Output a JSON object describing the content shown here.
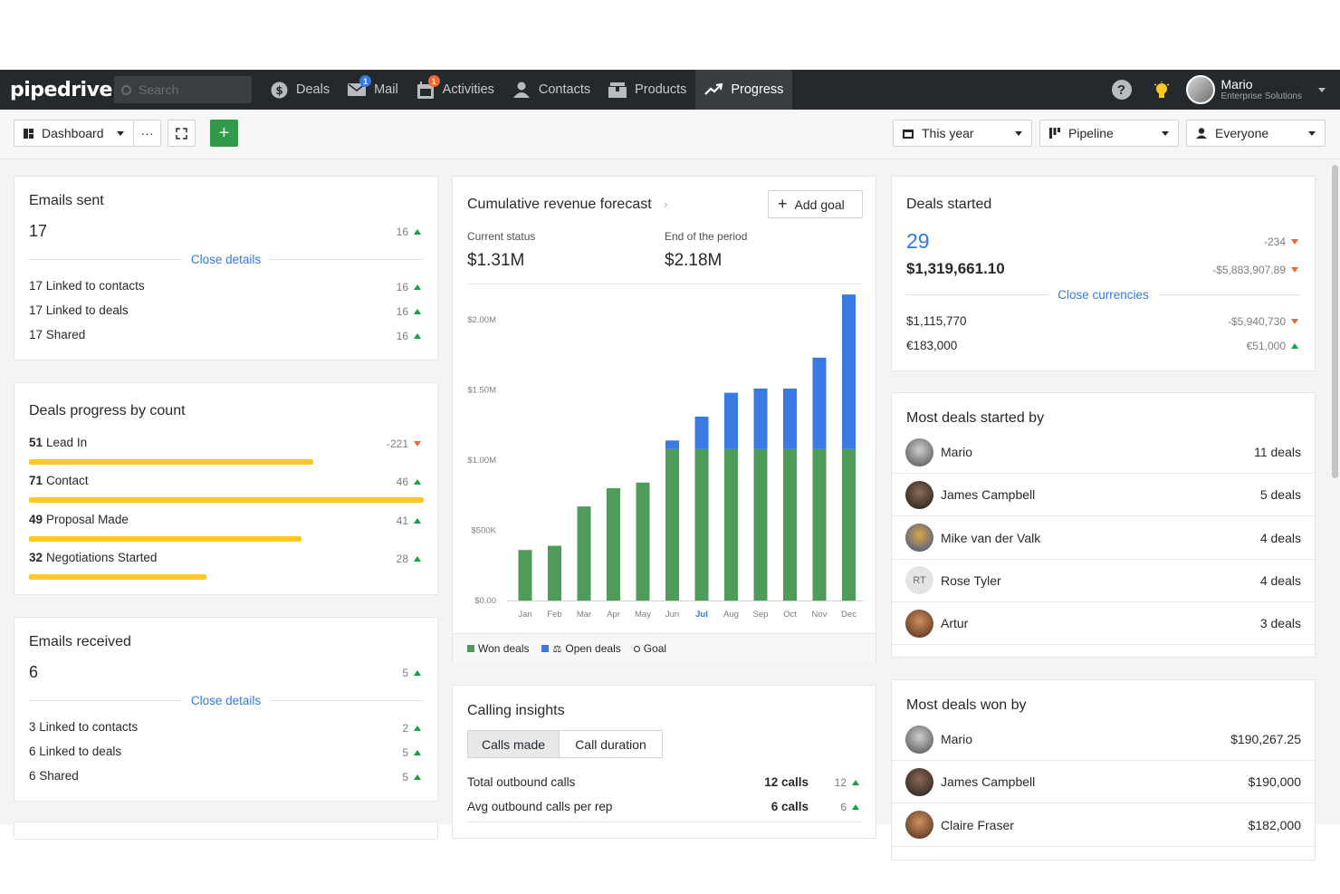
{
  "nav": {
    "logo": "pipedrive",
    "search_placeholder": "Search",
    "items": [
      {
        "label": "Deals",
        "icon": "dollar-icon"
      },
      {
        "label": "Mail",
        "icon": "mail-icon",
        "badge": "1"
      },
      {
        "label": "Activities",
        "icon": "calendar-icon",
        "badge": "1"
      },
      {
        "label": "Contacts",
        "icon": "person-icon"
      },
      {
        "label": "Products",
        "icon": "box-icon"
      },
      {
        "label": "Progress",
        "icon": "trend-icon",
        "active": true
      }
    ],
    "help": "?",
    "user": {
      "name": "Mario",
      "company": "Enterprise Solutions"
    }
  },
  "toolbar": {
    "dashboard": "Dashboard",
    "more": "···",
    "add": "+",
    "period": "This year",
    "pipeline": "Pipeline",
    "owner": "Everyone"
  },
  "emails_sent": {
    "title": "Emails sent",
    "value": "17",
    "compare": "16",
    "toggle": "Close details",
    "rows": [
      {
        "label": "17 Linked to contacts",
        "compare": "16"
      },
      {
        "label": "17 Linked to deals",
        "compare": "16"
      },
      {
        "label": "17 Shared",
        "compare": "16"
      }
    ]
  },
  "deals_progress": {
    "title": "Deals progress by count",
    "stages": [
      {
        "count": "51",
        "name": "Lead In",
        "compare": "-221",
        "dir": "down",
        "fill": 0.72
      },
      {
        "count": "71",
        "name": "Contact",
        "compare": "46",
        "dir": "up",
        "fill": 1.0
      },
      {
        "count": "49",
        "name": "Proposal Made",
        "compare": "41",
        "dir": "up",
        "fill": 0.69
      },
      {
        "count": "32",
        "name": "Negotiations Started",
        "compare": "28",
        "dir": "up",
        "fill": 0.45
      }
    ]
  },
  "emails_received": {
    "title": "Emails received",
    "value": "6",
    "compare": "5",
    "toggle": "Close details",
    "rows": [
      {
        "label": "3 Linked to contacts",
        "compare": "2"
      },
      {
        "label": "6 Linked to deals",
        "compare": "5"
      },
      {
        "label": "6 Shared",
        "compare": "5"
      }
    ]
  },
  "forecast": {
    "title": "Cumulative revenue forecast",
    "add_goal": "Add goal",
    "current_label": "Current status",
    "current_value": "$1.31M",
    "end_label": "End of the period",
    "end_value": "$2.18M",
    "legend": {
      "won": "Won deals",
      "open": "Open deals",
      "goal": "Goal"
    }
  },
  "chart_data": {
    "type": "bar",
    "stacked": true,
    "categories": [
      "Jan",
      "Feb",
      "Mar",
      "Apr",
      "May",
      "Jun",
      "Jul",
      "Aug",
      "Sep",
      "Oct",
      "Nov",
      "Dec"
    ],
    "highlight_category": "Jul",
    "series": [
      {
        "name": "Won deals",
        "color": "#4f9c5a",
        "values": [
          0.36,
          0.39,
          0.67,
          0.8,
          0.84,
          1.08,
          1.08,
          1.08,
          1.08,
          1.08,
          1.08,
          1.08
        ]
      },
      {
        "name": "Open deals",
        "color": "#3a7be3",
        "values": [
          0,
          0,
          0,
          0,
          0,
          0.06,
          0.23,
          0.4,
          0.43,
          0.43,
          0.65,
          1.1
        ]
      }
    ],
    "y_ticks": [
      "$0.00",
      "$500K",
      "$1.00M",
      "$1.50M",
      "$2.00M"
    ],
    "ylim": [
      0,
      2.2
    ],
    "grid": false
  },
  "calling": {
    "title": "Calling insights",
    "tabs": [
      "Calls made",
      "Call duration"
    ],
    "rows": [
      {
        "label": "Total outbound calls",
        "value": "12 calls",
        "compare": "12"
      },
      {
        "label": "Avg outbound calls per rep",
        "value": "6 calls",
        "compare": "6"
      }
    ]
  },
  "deals_started": {
    "title": "Deals started",
    "count": "29",
    "count_compare": "-234",
    "amount": "$1,319,661.10",
    "amount_compare": "-$5,883,907.89",
    "toggle": "Close currencies",
    "currencies": [
      {
        "value": "$1,115,770",
        "compare": "-$5,940,730",
        "dir": "down"
      },
      {
        "value": "€183,000",
        "compare": "€51,000",
        "dir": "up"
      }
    ]
  },
  "most_started": {
    "title": "Most deals started by",
    "people": [
      {
        "name": "Mario",
        "value": "11 deals",
        "avatar": "photo"
      },
      {
        "name": "James Campbell",
        "value": "5 deals",
        "avatar": "photo"
      },
      {
        "name": "Mike van der Valk",
        "value": "4 deals",
        "avatar": "photo"
      },
      {
        "name": "Rose Tyler",
        "value": "4 deals",
        "avatar": "RT"
      },
      {
        "name": "Artur",
        "value": "3 deals",
        "avatar": "photo"
      }
    ]
  },
  "most_won": {
    "title": "Most deals won by",
    "people": [
      {
        "name": "Mario",
        "value": "$190,267.25"
      },
      {
        "name": "James Campbell",
        "value": "$190,000"
      },
      {
        "name": "Claire Fraser",
        "value": "$182,000"
      }
    ]
  },
  "colors": {
    "accent": "#317ae2",
    "green": "#08a742",
    "red": "#f06731",
    "yellow": "#ffc824",
    "nav": "#26292c"
  }
}
